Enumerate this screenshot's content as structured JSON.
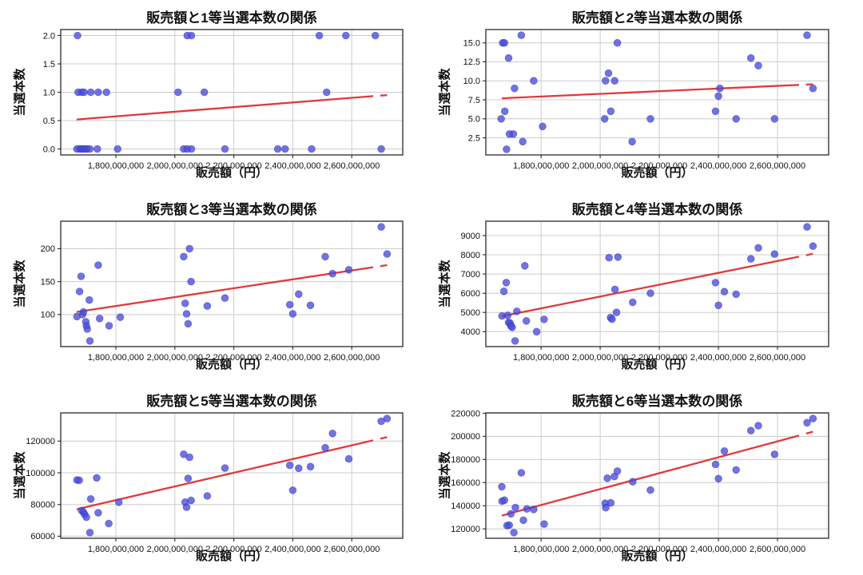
{
  "figure": {
    "background": "#ffffff",
    "marker_color": "#4a4cd8",
    "marker_edge_color": "#2f32c0",
    "trend_color": "#e03a3a",
    "grid_color": "#cccccc",
    "axis_color": "#2a2a2a",
    "tick_label_color": "#111111"
  },
  "chart_data": [
    {
      "type": "scatter",
      "title": "販売額と1等当選本数の関係",
      "xlabel": "販売額（円）",
      "ylabel": "当選本数",
      "grid": true,
      "xlim": [
        1613000000,
        2773000000
      ],
      "ylim": [
        -0.105,
        2.105
      ],
      "x_ticks": [
        1800000000,
        2000000000,
        2200000000,
        2400000000,
        2600000000
      ],
      "x_tick_labels": [
        "1,800,000,000",
        "2,000,000,000",
        "2,200,000,000",
        "2,400,000,000",
        "2,600,000,000"
      ],
      "y_ticks": [
        0.0,
        0.5,
        1.0,
        1.5,
        2.0
      ],
      "y_tick_labels": [
        "0.0",
        "0.5",
        "1.0",
        "1.5",
        "2.0"
      ],
      "points": [
        [
          1668000000,
          0
        ],
        [
          1678000000,
          0
        ],
        [
          1684000000,
          0
        ],
        [
          1690000000,
          0
        ],
        [
          1696000000,
          0
        ],
        [
          1702000000,
          0
        ],
        [
          1712000000,
          0
        ],
        [
          1737000000,
          0
        ],
        [
          1806000000,
          0
        ],
        [
          2030000000,
          0
        ],
        [
          2042000000,
          0
        ],
        [
          2056000000,
          0
        ],
        [
          2170000000,
          0
        ],
        [
          2349000000,
          0
        ],
        [
          2374000000,
          0
        ],
        [
          2464000000,
          0
        ],
        [
          2700000000,
          0
        ],
        [
          1672000000,
          1
        ],
        [
          1684000000,
          1
        ],
        [
          1692000000,
          1
        ],
        [
          1715000000,
          1
        ],
        [
          1740000000,
          1
        ],
        [
          1768000000,
          1
        ],
        [
          2011000000,
          1
        ],
        [
          2100000000,
          1
        ],
        [
          2515000000,
          1
        ],
        [
          1670000000,
          2
        ],
        [
          2042000000,
          2
        ],
        [
          2056000000,
          2
        ],
        [
          2490000000,
          2
        ],
        [
          2580000000,
          2
        ],
        [
          2680000000,
          2
        ]
      ],
      "trendline": {
        "x": [
          1667000000,
          2720000000
        ],
        "y": [
          0.52,
          0.95
        ]
      }
    },
    {
      "type": "scatter",
      "title": "販売額と2等当選本数の関係",
      "xlabel": "販売額（円）",
      "ylabel": "当選本数",
      "grid": true,
      "xlim": [
        1613000000,
        2773000000
      ],
      "ylim": [
        0.25,
        16.75
      ],
      "x_ticks": [
        1800000000,
        2000000000,
        2200000000,
        2400000000,
        2600000000
      ],
      "x_tick_labels": [
        "1,800,000,000",
        "2,000,000,000",
        "2,200,000,000",
        "2,400,000,000",
        "2,600,000,000"
      ],
      "y_ticks": [
        2.5,
        5.0,
        7.5,
        10.0,
        12.5,
        15.0
      ],
      "y_tick_labels": [
        "2.5",
        "5.0",
        "7.5",
        "10.0",
        "12.5",
        "15.0"
      ],
      "points": [
        [
          1665000000,
          5
        ],
        [
          1670000000,
          15
        ],
        [
          1676000000,
          15
        ],
        [
          1677000000,
          6
        ],
        [
          1683000000,
          1
        ],
        [
          1690000000,
          13
        ],
        [
          1693000000,
          3
        ],
        [
          1706000000,
          3
        ],
        [
          1710000000,
          9
        ],
        [
          1733000000,
          16
        ],
        [
          1738000000,
          2
        ],
        [
          1775000000,
          10
        ],
        [
          1805000000,
          4
        ],
        [
          2015000000,
          5
        ],
        [
          2018000000,
          10
        ],
        [
          2028000000,
          11
        ],
        [
          2036000000,
          6
        ],
        [
          2049000000,
          10
        ],
        [
          2058000000,
          15
        ],
        [
          2108000000,
          2
        ],
        [
          2170000000,
          5
        ],
        [
          2390000000,
          6
        ],
        [
          2400000000,
          8
        ],
        [
          2405000000,
          9
        ],
        [
          2460000000,
          5
        ],
        [
          2510000000,
          13
        ],
        [
          2535000000,
          12
        ],
        [
          2590000000,
          5
        ],
        [
          2700000000,
          16
        ],
        [
          2720000000,
          9
        ]
      ],
      "trendline": {
        "x": [
          1667000000,
          2720000000
        ],
        "y": [
          7.7,
          9.55
        ]
      }
    },
    {
      "type": "scatter",
      "title": "販売額と3等当選本数の関係",
      "xlabel": "販売額（円）",
      "ylabel": "当選本数",
      "grid": true,
      "xlim": [
        1613000000,
        2773000000
      ],
      "ylim": [
        51.35,
        241.65
      ],
      "x_ticks": [
        1800000000,
        2000000000,
        2200000000,
        2400000000,
        2600000000
      ],
      "x_tick_labels": [
        "1,800,000,000",
        "2,000,000,000",
        "2,200,000,000",
        "2,400,000,000",
        "2,600,000,000"
      ],
      "y_ticks": [
        100,
        150,
        200
      ],
      "y_tick_labels": [
        "100",
        "150",
        "200"
      ],
      "points": [
        [
          1668000000,
          97
        ],
        [
          1677000000,
          135
        ],
        [
          1682000000,
          158
        ],
        [
          1687000000,
          100
        ],
        [
          1690000000,
          104
        ],
        [
          1698000000,
          89
        ],
        [
          1700000000,
          83
        ],
        [
          1703000000,
          78
        ],
        [
          1710000000,
          122
        ],
        [
          1712000000,
          60
        ],
        [
          1740000000,
          175
        ],
        [
          1745000000,
          94
        ],
        [
          1777000000,
          83
        ],
        [
          1815000000,
          96
        ],
        [
          2030000000,
          188
        ],
        [
          2035000000,
          117
        ],
        [
          2040000000,
          101
        ],
        [
          2045000000,
          86
        ],
        [
          2050000000,
          200
        ],
        [
          2055000000,
          150
        ],
        [
          2110000000,
          113
        ],
        [
          2170000000,
          125
        ],
        [
          2390000000,
          115
        ],
        [
          2400000000,
          101
        ],
        [
          2420000000,
          131
        ],
        [
          2460000000,
          114
        ],
        [
          2510000000,
          188
        ],
        [
          2535000000,
          162
        ],
        [
          2590000000,
          168
        ],
        [
          2700000000,
          233
        ],
        [
          2720000000,
          192
        ]
      ],
      "trendline": {
        "x": [
          1667000000,
          2720000000
        ],
        "y": [
          104,
          175
        ]
      }
    },
    {
      "type": "scatter",
      "title": "販売額と4等当選本数の関係",
      "xlabel": "販売額（円）",
      "ylabel": "当選本数",
      "grid": true,
      "xlim": [
        1613000000,
        2773000000
      ],
      "ylim": [
        3223,
        9747
      ],
      "x_ticks": [
        1800000000,
        2000000000,
        2200000000,
        2400000000,
        2600000000
      ],
      "x_tick_labels": [
        "1,800,000,000",
        "2,000,000,000",
        "2,200,000,000",
        "2,400,000,000",
        "2,600,000,000"
      ],
      "y_ticks": [
        4000,
        5000,
        6000,
        7000,
        8000,
        9000
      ],
      "y_tick_labels": [
        "4000",
        "5000",
        "6000",
        "7000",
        "8000",
        "9000"
      ],
      "points": [
        [
          1668000000,
          4820
        ],
        [
          1674000000,
          6100
        ],
        [
          1682000000,
          6550
        ],
        [
          1687000000,
          4850
        ],
        [
          1690000000,
          4480
        ],
        [
          1695000000,
          4450
        ],
        [
          1698000000,
          4300
        ],
        [
          1702000000,
          4230
        ],
        [
          1712000000,
          3520
        ],
        [
          1718000000,
          5060
        ],
        [
          1745000000,
          7430
        ],
        [
          1750000000,
          4560
        ],
        [
          1785000000,
          4000
        ],
        [
          1810000000,
          4640
        ],
        [
          2030000000,
          7850
        ],
        [
          2035000000,
          4730
        ],
        [
          2040000000,
          4650
        ],
        [
          2050000000,
          6200
        ],
        [
          2055000000,
          5000
        ],
        [
          2060000000,
          7880
        ],
        [
          2110000000,
          5530
        ],
        [
          2170000000,
          6000
        ],
        [
          2390000000,
          6550
        ],
        [
          2400000000,
          5370
        ],
        [
          2420000000,
          6080
        ],
        [
          2460000000,
          5950
        ],
        [
          2510000000,
          7790
        ],
        [
          2535000000,
          8360
        ],
        [
          2590000000,
          8040
        ],
        [
          2700000000,
          9450
        ],
        [
          2720000000,
          8450
        ]
      ],
      "trendline": {
        "x": [
          1667000000,
          2720000000
        ],
        "y": [
          4800,
          8050
        ]
      }
    },
    {
      "type": "scatter",
      "title": "販売額と5等当選本数の関係",
      "xlabel": "販売額（円）",
      "ylabel": "当選本数",
      "grid": true,
      "xlim": [
        1613000000,
        2773000000
      ],
      "ylim": [
        58705,
        137795
      ],
      "x_ticks": [
        1800000000,
        2000000000,
        2200000000,
        2400000000,
        2600000000
      ],
      "x_tick_labels": [
        "1,800,000,000",
        "2,000,000,000",
        "2,200,000,000",
        "2,400,000,000",
        "2,600,000,000"
      ],
      "y_ticks": [
        60000,
        80000,
        100000,
        120000
      ],
      "y_tick_labels": [
        "60000",
        "80000",
        "100000",
        "120000"
      ],
      "points": [
        [
          1668000000,
          95500
        ],
        [
          1676000000,
          95300
        ],
        [
          1684000000,
          76200
        ],
        [
          1690000000,
          75200
        ],
        [
          1694000000,
          73800
        ],
        [
          1700000000,
          72000
        ],
        [
          1712000000,
          62300
        ],
        [
          1715000000,
          83500
        ],
        [
          1735000000,
          96800
        ],
        [
          1740000000,
          74800
        ],
        [
          1776000000,
          68000
        ],
        [
          1810000000,
          81400
        ],
        [
          2030000000,
          111700
        ],
        [
          2035000000,
          81500
        ],
        [
          2040000000,
          78300
        ],
        [
          2045000000,
          96500
        ],
        [
          2050000000,
          109800
        ],
        [
          2055000000,
          82600
        ],
        [
          2110000000,
          85400
        ],
        [
          2170000000,
          103000
        ],
        [
          2390000000,
          104700
        ],
        [
          2400000000,
          89000
        ],
        [
          2420000000,
          102900
        ],
        [
          2460000000,
          103900
        ],
        [
          2510000000,
          115800
        ],
        [
          2535000000,
          124800
        ],
        [
          2590000000,
          108800
        ],
        [
          2700000000,
          132500
        ],
        [
          2720000000,
          134200
        ]
      ],
      "trendline": {
        "x": [
          1667000000,
          2720000000
        ],
        "y": [
          77000,
          122500
        ]
      }
    },
    {
      "type": "scatter",
      "title": "販売額と6等当選本数の関係",
      "xlabel": "販売額（円）",
      "ylabel": "当選本数",
      "grid": true,
      "xlim": [
        1613000000,
        2773000000
      ],
      "ylim": [
        111870,
        220330
      ],
      "x_ticks": [
        1800000000,
        2000000000,
        2200000000,
        2400000000,
        2600000000
      ],
      "x_tick_labels": [
        "1,800,000,000",
        "2,000,000,000",
        "2,200,000,000",
        "2,400,000,000",
        "2,600,000,000"
      ],
      "y_ticks": [
        120000,
        140000,
        160000,
        180000,
        200000,
        220000
      ],
      "y_tick_labels": [
        "120000",
        "140000",
        "160000",
        "180000",
        "200000",
        "220000"
      ],
      "points": [
        [
          1667000000,
          156500
        ],
        [
          1668000000,
          144000
        ],
        [
          1676000000,
          144800
        ],
        [
          1685000000,
          122800
        ],
        [
          1692000000,
          123300
        ],
        [
          1698000000,
          133000
        ],
        [
          1708000000,
          116800
        ],
        [
          1713000000,
          138500
        ],
        [
          1733000000,
          168500
        ],
        [
          1740000000,
          127500
        ],
        [
          1752000000,
          137300
        ],
        [
          1775000000,
          136800
        ],
        [
          1810000000,
          124200
        ],
        [
          2017000000,
          142200
        ],
        [
          2019000000,
          138300
        ],
        [
          2024000000,
          163800
        ],
        [
          2036000000,
          142500
        ],
        [
          2048000000,
          165300
        ],
        [
          2058000000,
          170000
        ],
        [
          2110000000,
          160800
        ],
        [
          2170000000,
          153500
        ],
        [
          2390000000,
          175800
        ],
        [
          2400000000,
          163500
        ],
        [
          2420000000,
          187300
        ],
        [
          2460000000,
          171000
        ],
        [
          2510000000,
          205000
        ],
        [
          2535000000,
          209300
        ],
        [
          2590000000,
          184500
        ],
        [
          2700000000,
          211800
        ],
        [
          2720000000,
          215400
        ]
      ],
      "trendline": {
        "x": [
          1667000000,
          2720000000
        ],
        "y": [
          131500,
          204000
        ]
      }
    }
  ]
}
